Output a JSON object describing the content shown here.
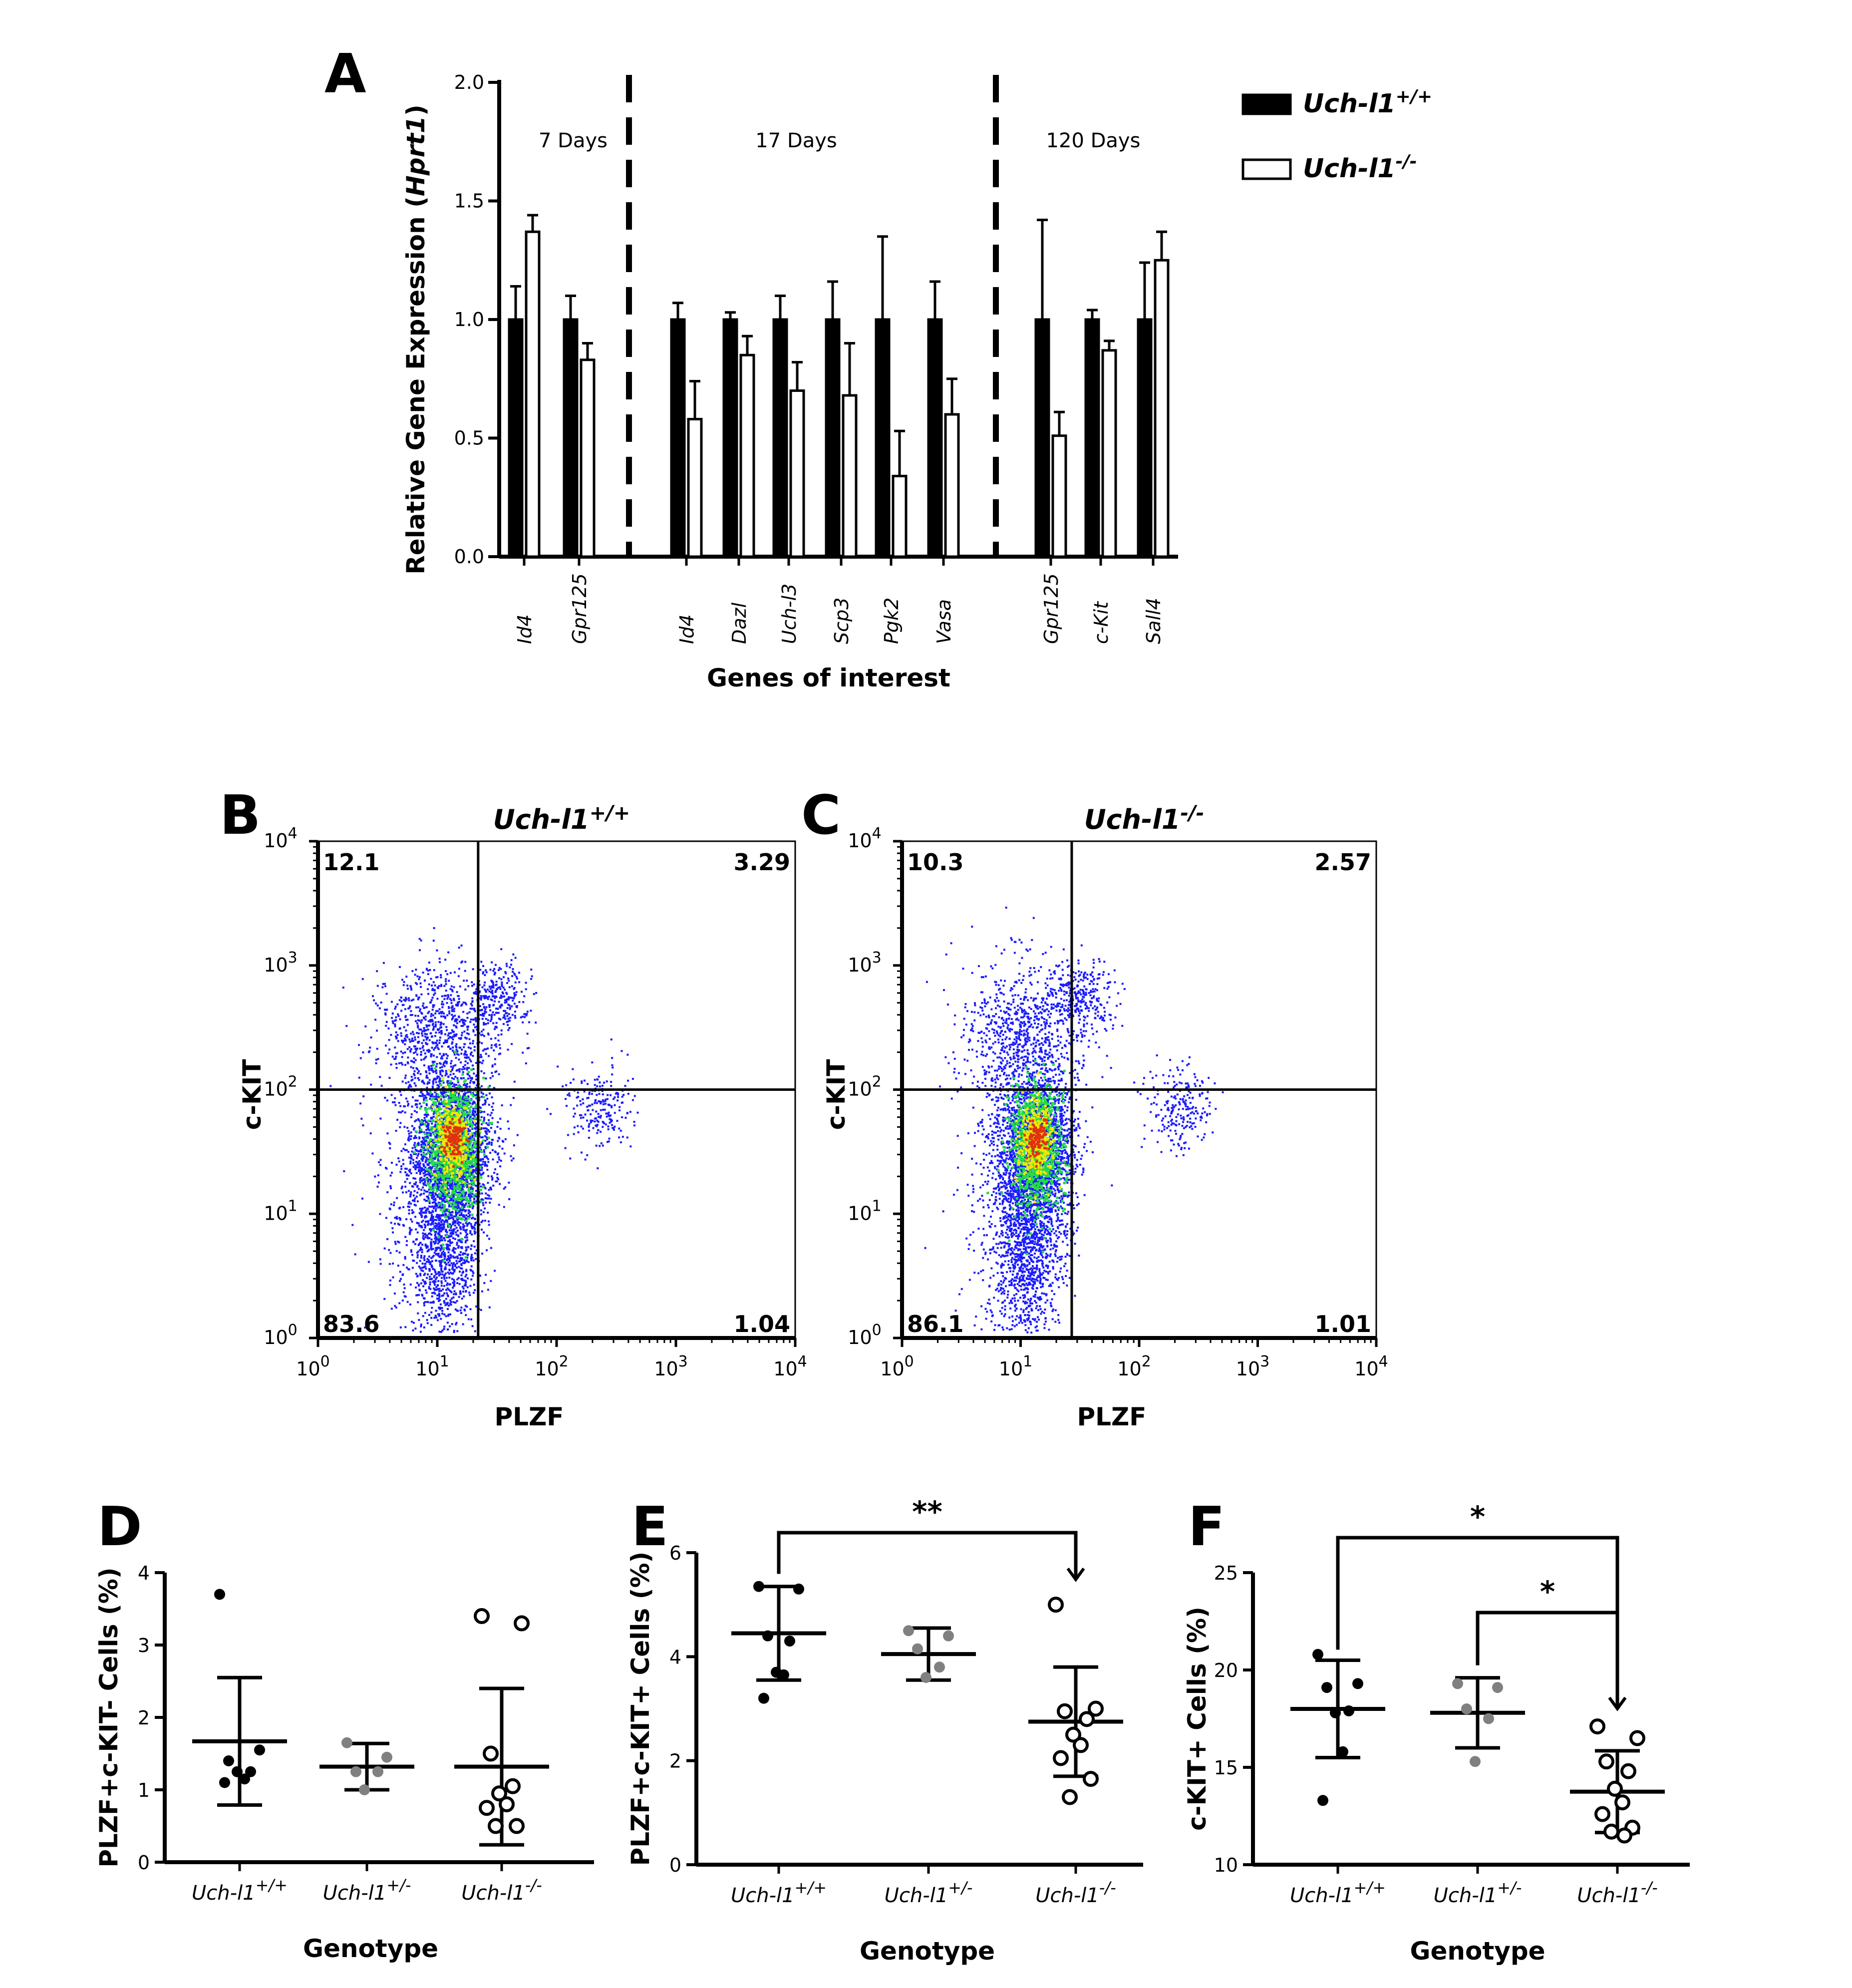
{
  "panels": {
    "a": "A",
    "b": "B",
    "c": "C",
    "d": "D",
    "e": "E",
    "f": "F"
  },
  "colors": {
    "wt": "#000000",
    "het": "#808080",
    "ko": "#ffffff",
    "dot_blue": "#1a1aff",
    "dot_green": "#22dd44",
    "dot_yellow": "#f5e600",
    "dot_red": "#e03010"
  },
  "chart_data": [
    {
      "id": "A",
      "type": "bar",
      "ylabel": "Relative Gene Expression (Hprt1)",
      "xlabel": "Genes of interest",
      "ylim": [
        0,
        2.0
      ],
      "yticks": [
        "0.0",
        "0.5",
        "1.0",
        "1.5",
        "2.0"
      ],
      "groups": [
        "7 Days",
        "17 Days",
        "120 Days"
      ],
      "categories": [
        "Id4",
        "Gpr125",
        "Id4",
        "Dazl",
        "Uch-l3",
        "Scp3",
        "Pgk2",
        "Vasa",
        "Gpr125",
        "c-Kit",
        "Sall4"
      ],
      "category_group": [
        0,
        0,
        1,
        1,
        1,
        1,
        1,
        1,
        2,
        2,
        2
      ],
      "series": [
        {
          "name": "Uch-l1+/+",
          "legend_base": "Uch-l1",
          "legend_sup": "+/+",
          "values": [
            1.0,
            1.0,
            1.0,
            1.0,
            1.0,
            1.0,
            1.0,
            1.0,
            1.0,
            1.0,
            1.0
          ],
          "errors": [
            0.14,
            0.1,
            0.07,
            0.03,
            0.1,
            0.16,
            0.35,
            0.16,
            0.42,
            0.04,
            0.24
          ]
        },
        {
          "name": "Uch-l1-/-",
          "legend_base": "Uch-l1",
          "legend_sup": "-/-",
          "values": [
            1.37,
            0.83,
            0.58,
            0.85,
            0.7,
            0.68,
            0.34,
            0.6,
            0.51,
            0.87,
            1.25
          ],
          "errors": [
            0.07,
            0.07,
            0.16,
            0.08,
            0.12,
            0.22,
            0.19,
            0.15,
            0.1,
            0.04,
            0.12
          ]
        }
      ]
    },
    {
      "id": "B",
      "type": "scatter",
      "title_base": "Uch-l1",
      "title_sup": "+/+",
      "xlabel": "PLZF",
      "ylabel": "c-KIT",
      "xlim_log10": [
        0,
        4
      ],
      "ylim_log10": [
        0,
        4
      ],
      "gate": {
        "x": 22,
        "y": 100
      },
      "quadrants": {
        "ul": "12.1",
        "ur": "3.29",
        "ll": "83.6",
        "lr": "1.04"
      }
    },
    {
      "id": "C",
      "type": "scatter",
      "title_base": "Uch-l1",
      "title_sup": "-/-",
      "xlabel": "PLZF",
      "ylabel": "c-KIT",
      "xlim_log10": [
        0,
        4
      ],
      "ylim_log10": [
        0,
        4
      ],
      "gate": {
        "x": 27,
        "y": 100
      },
      "quadrants": {
        "ul": "10.3",
        "ur": "2.57",
        "ll": "86.1",
        "lr": "1.01"
      }
    },
    {
      "id": "D",
      "type": "scatter",
      "ylabel": "PLZF+c-KIT- Cells (%)",
      "xlabel": "Genotype",
      "ylim": [
        0,
        4
      ],
      "yticks": [
        "0",
        "1",
        "2",
        "3",
        "4"
      ],
      "groups": [
        {
          "label_base": "Uch-l1",
          "label_sup": "+/+",
          "mean": 1.67,
          "sd": 0.88,
          "points": [
            3.7,
            1.55,
            1.4,
            1.25,
            1.25,
            1.15,
            1.1
          ]
        },
        {
          "label_base": "Uch-l1",
          "label_sup": "+/-",
          "mean": 1.32,
          "sd": 0.32,
          "points": [
            1.65,
            1.45,
            1.25,
            1.25,
            1.0
          ]
        },
        {
          "label_base": "Uch-l1",
          "label_sup": "-/-",
          "mean": 1.32,
          "sd": 1.08,
          "points": [
            3.4,
            3.3,
            1.5,
            1.05,
            0.95,
            0.8,
            0.75,
            0.5,
            0.5
          ]
        }
      ]
    },
    {
      "id": "E",
      "type": "scatter",
      "ylabel": "PLZF+c-KIT+ Cells (%)",
      "xlabel": "Genotype",
      "ylim": [
        0,
        6
      ],
      "yticks": [
        "0",
        "2",
        "4",
        "6"
      ],
      "groups": [
        {
          "label_base": "Uch-l1",
          "label_sup": "+/+",
          "mean": 4.45,
          "sd": 0.9,
          "points": [
            5.35,
            5.3,
            4.4,
            4.3,
            3.7,
            3.65,
            3.2
          ]
        },
        {
          "label_base": "Uch-l1",
          "label_sup": "+/-",
          "mean": 4.05,
          "sd": 0.5,
          "points": [
            4.5,
            4.4,
            4.15,
            3.8,
            3.6
          ]
        },
        {
          "label_base": "Uch-l1",
          "label_sup": "-/-",
          "mean": 2.75,
          "sd": 1.05,
          "points": [
            5.0,
            3.0,
            2.95,
            2.8,
            2.5,
            2.3,
            2.05,
            1.65,
            1.3
          ]
        }
      ],
      "brackets": [
        {
          "from": 0,
          "to": 2,
          "label": "**"
        }
      ]
    },
    {
      "id": "F",
      "type": "scatter",
      "ylabel": "c-KIT+ Cells (%)",
      "xlabel": "Genotype",
      "ylim": [
        10,
        25
      ],
      "yticks": [
        "10",
        "15",
        "20",
        "25"
      ],
      "groups": [
        {
          "label_base": "Uch-l1",
          "label_sup": "+/+",
          "mean": 18.0,
          "sd": 2.5,
          "points": [
            20.8,
            19.3,
            19.1,
            17.9,
            17.8,
            15.8,
            13.3
          ]
        },
        {
          "label_base": "Uch-l1",
          "label_sup": "+/-",
          "mean": 17.8,
          "sd": 1.8,
          "points": [
            19.3,
            19.1,
            18.0,
            17.5,
            15.3
          ]
        },
        {
          "label_base": "Uch-l1",
          "label_sup": "-/-",
          "mean": 13.75,
          "sd": 2.1,
          "points": [
            17.1,
            16.5,
            15.3,
            14.8,
            13.9,
            13.2,
            12.6,
            11.9,
            11.7,
            11.5
          ]
        }
      ],
      "brackets": [
        {
          "from": 0,
          "to": 2,
          "label": "*"
        },
        {
          "from": 1,
          "to": 2,
          "label": "*"
        }
      ]
    }
  ]
}
